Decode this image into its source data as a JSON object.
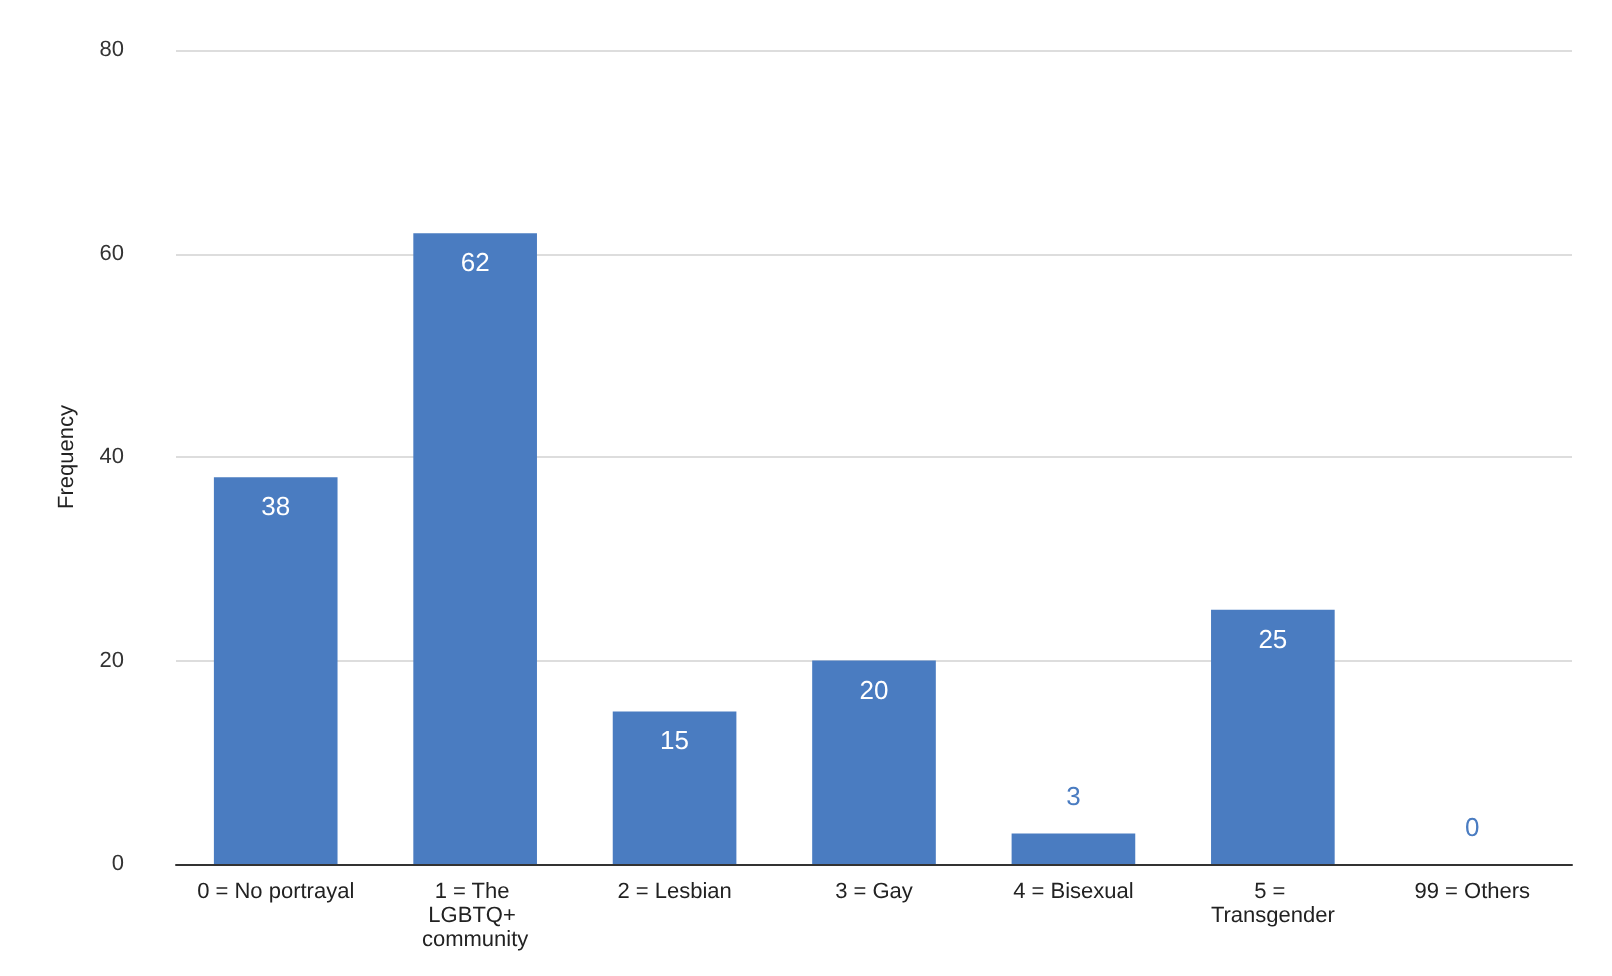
{
  "chart_data": {
    "type": "bar",
    "ylabel": "Frequency",
    "categories": [
      "0 = No portrayal",
      "1 = The LGBTQ+ community",
      "2 = Lesbian",
      "3 = Gay",
      "4 = Bisexual",
      "5 = Transgender",
      "99 = Others"
    ],
    "values": [
      38,
      62,
      15,
      20,
      3,
      25,
      0
    ],
    "color": "#4a7cc1",
    "ylim": [
      0,
      80
    ],
    "yticks": [
      0,
      20,
      40,
      60,
      80
    ],
    "grid": "y",
    "data_labels": true
  }
}
